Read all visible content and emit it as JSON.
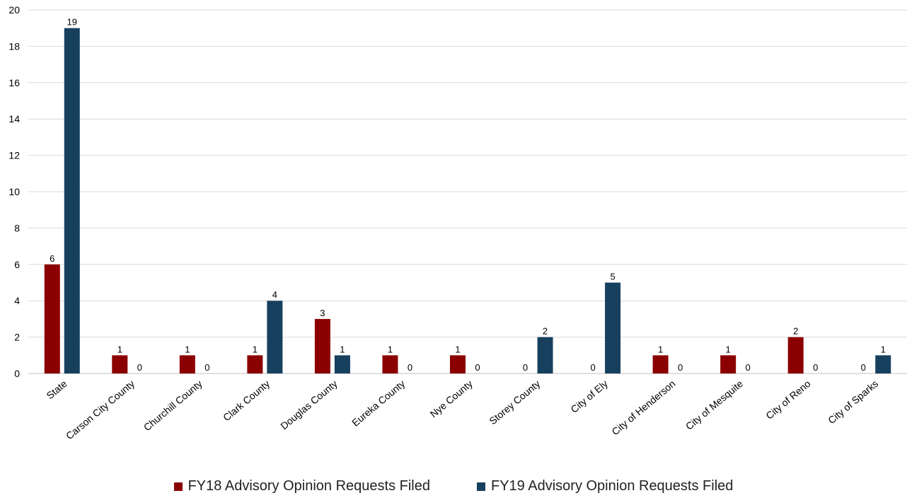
{
  "chart_data": {
    "type": "bar",
    "categories": [
      "State",
      "Carson City County",
      "Churchill County",
      "Clark County",
      "Douglas County",
      "Eureka County",
      "Nye County",
      "Storey County",
      "City of Ely",
      "City of Henderson",
      "City of Mesquite",
      "City of Reno",
      "City of Sparks"
    ],
    "series": [
      {
        "name": "FY18 Advisory Opinion Requests Filed",
        "color": "#8B0000",
        "values": [
          6,
          1,
          1,
          1,
          3,
          1,
          1,
          0,
          0,
          1,
          1,
          2,
          0
        ]
      },
      {
        "name": "FY19 Advisory Opinion Requests Filed",
        "color": "#17405E",
        "values": [
          19,
          0,
          0,
          4,
          1,
          0,
          0,
          2,
          5,
          0,
          0,
          0,
          1
        ]
      }
    ],
    "ylim": [
      0,
      20
    ],
    "yticks": [
      0,
      2,
      4,
      6,
      8,
      10,
      12,
      14,
      16,
      18,
      20
    ],
    "grid": true,
    "legend": "bottom"
  }
}
